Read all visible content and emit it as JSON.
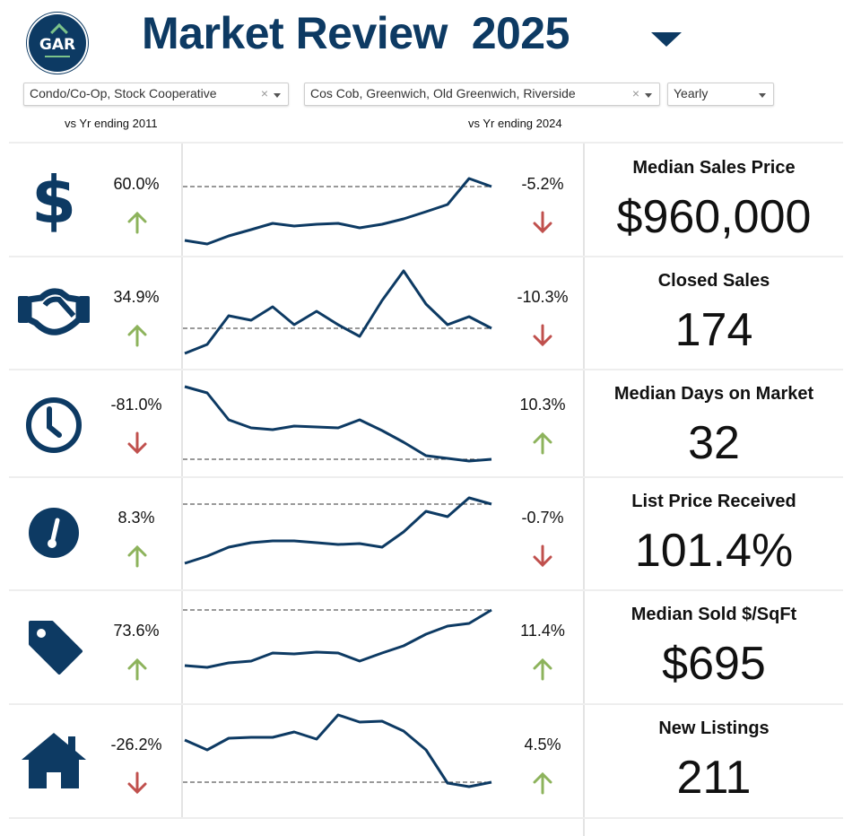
{
  "header": {
    "logo_text": "GAR",
    "title": "Market Review",
    "year": "2025"
  },
  "filters": {
    "property_type": "Condo/Co-Op, Stock Cooperative",
    "areas": "Cos Cob, Greenwich, Old Greenwich, Riverside",
    "period": "Yearly",
    "clear_symbol": "×"
  },
  "compare": {
    "left": "vs Yr ending 2011",
    "right": "vs Yr ending 2024"
  },
  "colors": {
    "brand": "#0d3a63",
    "up": "#8db35c",
    "down": "#c0504d"
  },
  "metrics": [
    {
      "icon": "dollar-icon",
      "title": "Median Sales Price",
      "value": "$960,000",
      "vs_2011": "60.0%",
      "vs_2011_dir": "up",
      "vs_2024": "-5.2%",
      "vs_2024_dir": "down"
    },
    {
      "icon": "handshake-icon",
      "title": "Closed Sales",
      "value": "174",
      "vs_2011": "34.9%",
      "vs_2011_dir": "up",
      "vs_2024": "-10.3%",
      "vs_2024_dir": "down"
    },
    {
      "icon": "clock-icon",
      "title": "Median Days on Market",
      "value": "32",
      "vs_2011": "-81.0%",
      "vs_2011_dir": "down",
      "vs_2024": "10.3%",
      "vs_2024_dir": "up"
    },
    {
      "icon": "gauge-icon",
      "title": "List Price Received",
      "value": "101.4%",
      "vs_2011": "8.3%",
      "vs_2011_dir": "up",
      "vs_2024": "-0.7%",
      "vs_2024_dir": "down"
    },
    {
      "icon": "price-tag-icon",
      "title": "Median Sold $/SqFt",
      "value": "$695",
      "vs_2011": "73.6%",
      "vs_2011_dir": "up",
      "vs_2024": "11.4%",
      "vs_2024_dir": "up"
    },
    {
      "icon": "house-icon",
      "title": "New Listings",
      "value": "211",
      "vs_2011": "-26.2%",
      "vs_2011_dir": "down",
      "vs_2024": "4.5%",
      "vs_2024_dir": "up"
    }
  ]
}
